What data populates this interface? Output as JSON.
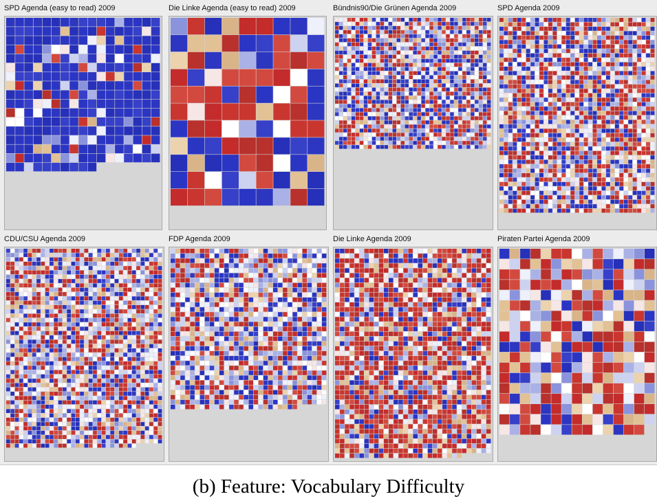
{
  "caption": "(b) Feature: Vocabulary Difficulty",
  "colors": {
    "easy": "#2b35c4",
    "mid_light": "#f2f2fb",
    "neutral": "#e2c195",
    "hard": "#c42b2b",
    "panel_bg": "#d6d6d6"
  },
  "chart_data": [
    {
      "type": "heatmap",
      "title": "SPD Agenda (easy to read) 2009",
      "cols": 17,
      "cells": 282,
      "mix": {
        "easy": 0.72,
        "light": 0.17,
        "neutral": 0.05,
        "hard": 0.06
      }
    },
    {
      "type": "heatmap",
      "title": "Die Linke Agenda (easy to read) 2009",
      "cols": 9,
      "cells": 99,
      "mix": {
        "easy": 0.45,
        "light": 0.15,
        "neutral": 0.13,
        "hard": 0.27
      }
    },
    {
      "type": "heatmap",
      "title": "Bündnis90/Die Grünen Agenda 2009",
      "cols": 38,
      "cells": 1216,
      "mix": {
        "easy": 0.25,
        "light": 0.42,
        "neutral": 0.08,
        "hard": 0.25
      }
    },
    {
      "type": "heatmap",
      "title": "SPD Agenda 2009",
      "cols": 35,
      "cells": 1540,
      "mix": {
        "easy": 0.2,
        "light": 0.35,
        "neutral": 0.12,
        "hard": 0.33
      }
    },
    {
      "type": "heatmap",
      "title": "CDU/CSU Agenda 2009",
      "cols": 36,
      "cells": 1650,
      "mix": {
        "easy": 0.2,
        "light": 0.42,
        "neutral": 0.12,
        "hard": 0.26
      }
    },
    {
      "type": "heatmap",
      "title": "FDP Agenda 2009",
      "cols": 32,
      "cells": 1050,
      "mix": {
        "easy": 0.2,
        "light": 0.45,
        "neutral": 0.12,
        "hard": 0.23
      }
    },
    {
      "type": "heatmap",
      "title": "Die Linke Agenda 2009",
      "cols": 32,
      "cells": 1370,
      "mix": {
        "easy": 0.12,
        "light": 0.28,
        "neutral": 0.12,
        "hard": 0.48
      }
    },
    {
      "type": "heatmap",
      "title": "Piraten Partei Agenda 2009",
      "cols": 15,
      "cells": 269,
      "mix": {
        "easy": 0.16,
        "light": 0.38,
        "neutral": 0.16,
        "hard": 0.3
      }
    }
  ]
}
